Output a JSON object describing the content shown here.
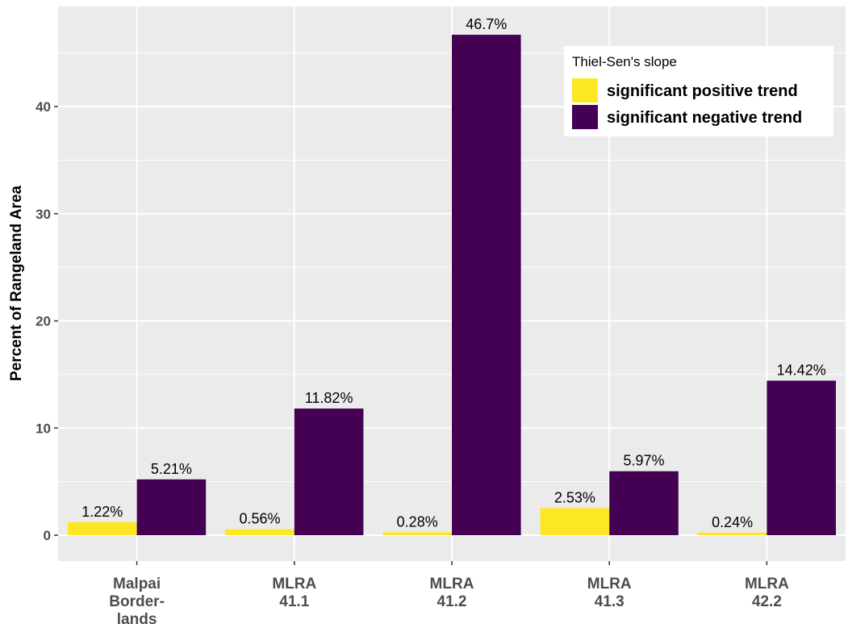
{
  "chart_data": {
    "type": "bar",
    "ylabel": "Percent of Rangeland Area",
    "xlabel": "",
    "ylim": [
      -2.3,
      49.5
    ],
    "yticks": [
      0,
      10,
      20,
      30,
      40
    ],
    "categories": [
      [
        "Malpai",
        "Border-",
        "lands"
      ],
      [
        "MLRA",
        "41.1"
      ],
      [
        "MLRA",
        "41.2"
      ],
      [
        "MLRA",
        "41.3"
      ],
      [
        "MLRA",
        "42.2"
      ]
    ],
    "series": [
      {
        "name": "significant positive trend",
        "color": "#FDE725",
        "values": [
          1.22,
          0.56,
          0.28,
          2.53,
          0.24
        ],
        "labels": [
          "1.22%",
          "0.56%",
          "0.28%",
          "2.53%",
          "0.24%"
        ]
      },
      {
        "name": "significant negative trend",
        "color": "#440154",
        "values": [
          5.21,
          11.82,
          46.7,
          5.97,
          14.42
        ],
        "labels": [
          "5.21%",
          "11.82%",
          "46.7%",
          "5.97%",
          "14.42%"
        ]
      }
    ],
    "legend": {
      "title": "Thiel-Sen's slope",
      "position": "top-right"
    },
    "grid": true,
    "panel_background": "#EBEBEB",
    "grid_color": "#FFFFFF"
  }
}
